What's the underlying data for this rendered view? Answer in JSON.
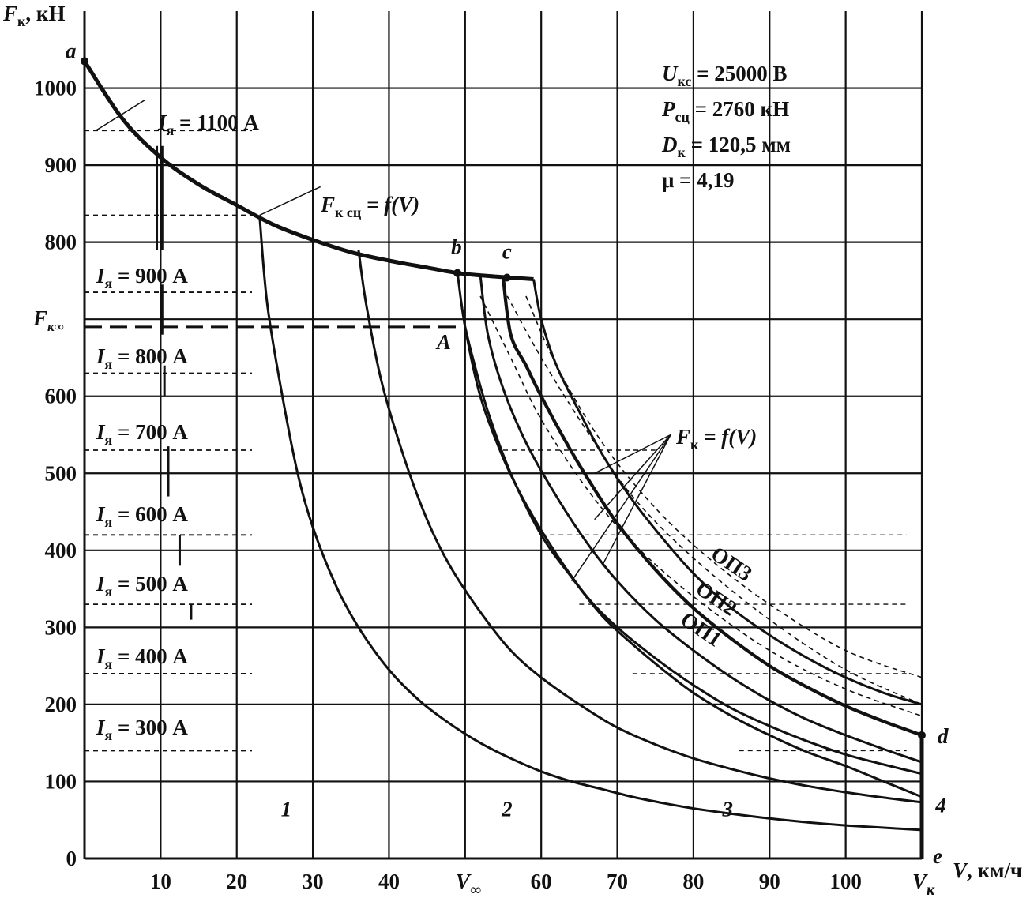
{
  "chart_data": {
    "type": "line",
    "title": "",
    "xlabel": "V, км/ч",
    "ylabel": "Fк, кН",
    "xlim": [
      0,
      110
    ],
    "ylim": [
      0,
      1100
    ],
    "x_tick_labels": [
      {
        "v": 10,
        "t": "10"
      },
      {
        "v": 20,
        "t": "20"
      },
      {
        "v": 30,
        "t": "30"
      },
      {
        "v": 40,
        "t": "40"
      },
      {
        "v": 50,
        "t": "V∞"
      },
      {
        "v": 60,
        "t": "60"
      },
      {
        "v": 70,
        "t": "70"
      },
      {
        "v": 80,
        "t": "80"
      },
      {
        "v": 90,
        "t": "90"
      },
      {
        "v": 100,
        "t": "100"
      },
      {
        "v": 110,
        "t": "Vк"
      }
    ],
    "y_tick_labels": [
      {
        "v": 0,
        "t": "0"
      },
      {
        "v": 100,
        "t": "100"
      },
      {
        "v": 200,
        "t": "200"
      },
      {
        "v": 300,
        "t": "300"
      },
      {
        "v": 400,
        "t": "400"
      },
      {
        "v": 500,
        "t": "500"
      },
      {
        "v": 600,
        "t": "600"
      },
      {
        "v": 690,
        "t": "Fк∞"
      },
      {
        "v": 800,
        "t": "800"
      },
      {
        "v": 900,
        "t": "900"
      },
      {
        "v": 1000,
        "t": "1000"
      }
    ],
    "grid": true,
    "parameters": [
      "Uкс = 25000 В",
      "Pсц = 2760 кН",
      "Dк = 120,5 мм",
      "μ = 4,19"
    ],
    "current_levels": [
      {
        "label": "Iя = 1100 А",
        "force": 945
      },
      {
        "label": "Iя = 900 А",
        "force": 735
      },
      {
        "label": "Iя = 800 А",
        "force": 690
      },
      {
        "label": "Iя = 700 А",
        "force": 530
      },
      {
        "label": "Iя = 600 А",
        "force": 420
      },
      {
        "label": "Iя = 500 А",
        "force": 330
      },
      {
        "label": "Iя = 400 А",
        "force": 240
      },
      {
        "label": "Iя = 300 А",
        "force": 140
      }
    ],
    "extra_dashed_levels": [
      835,
      630
    ],
    "adhesion_curve": {
      "name": "Fк сц = f(V)",
      "x": [
        0,
        5,
        10,
        15,
        20,
        25,
        30,
        35,
        40,
        45,
        49,
        52,
        56,
        59
      ],
      "y": [
        1035,
        960,
        910,
        875,
        848,
        822,
        803,
        787,
        776,
        767,
        760,
        757,
        754,
        752
      ]
    },
    "traction_label": "Fк = f(V)",
    "series": [
      {
        "name": "1",
        "x": [
          23,
          24,
          26,
          28,
          30,
          33,
          36,
          40,
          44,
          48,
          52,
          56,
          60,
          64,
          68,
          72,
          76,
          80,
          85,
          90,
          95,
          100,
          105,
          110
        ],
        "y": [
          835,
          720,
          600,
          500,
          430,
          355,
          300,
          245,
          205,
          175,
          150,
          130,
          113,
          100,
          90,
          80,
          72,
          65,
          58,
          52,
          47,
          43,
          40,
          37
        ]
      },
      {
        "name": "2",
        "x": [
          36,
          37,
          39,
          42,
          45,
          48,
          52,
          56,
          60,
          65,
          70,
          75,
          80,
          85,
          90,
          95,
          100,
          105,
          110
        ],
        "y": [
          790,
          720,
          620,
          520,
          440,
          380,
          320,
          270,
          235,
          200,
          170,
          148,
          130,
          116,
          104,
          94,
          86,
          79,
          73
        ]
      },
      {
        "name": "3",
        "x": [
          49,
          50,
          52,
          55,
          58,
          62,
          66,
          70,
          75,
          80,
          85,
          90,
          95,
          100,
          105,
          110
        ],
        "y": [
          760,
          690,
          600,
          520,
          460,
          395,
          340,
          300,
          260,
          225,
          195,
          172,
          152,
          135,
          122,
          110
        ]
      },
      {
        "name": "4",
        "x": [
          50,
          51,
          53,
          56,
          60,
          64,
          68,
          72,
          76,
          80,
          85,
          90,
          95,
          100,
          105,
          110
        ],
        "y": [
          690,
          650,
          580,
          500,
          420,
          365,
          315,
          278,
          245,
          215,
          185,
          160,
          138,
          120,
          100,
          80
        ]
      },
      {
        "name": "ОП1",
        "x": [
          52,
          53,
          55,
          58,
          62,
          66,
          70,
          75,
          80,
          85,
          90,
          95,
          100,
          105,
          110
        ],
        "y": [
          757,
          680,
          610,
          540,
          470,
          410,
          360,
          310,
          270,
          235,
          205,
          180,
          160,
          142,
          125
        ]
      },
      {
        "name": "ОП2",
        "x": [
          55,
          56,
          58,
          60,
          63,
          66,
          70,
          75,
          80,
          85,
          90,
          95,
          100,
          105,
          110
        ],
        "y": [
          754,
          680,
          640,
          600,
          545,
          495,
          435,
          375,
          325,
          285,
          250,
          222,
          198,
          178,
          160
        ]
      },
      {
        "name": "ОП3",
        "x": [
          59,
          60,
          62,
          65,
          68,
          72,
          76,
          80,
          85,
          90,
          95,
          100,
          105,
          110
        ],
        "y": [
          752,
          700,
          640,
          580,
          525,
          465,
          415,
          370,
          325,
          290,
          260,
          235,
          215,
          200
        ]
      }
    ],
    "points": [
      {
        "name": "a",
        "x": 0,
        "y": 1035
      },
      {
        "name": "b",
        "x": 49,
        "y": 760
      },
      {
        "name": "c",
        "x": 55.5,
        "y": 754
      },
      {
        "name": "A",
        "x": 50,
        "y": 690
      },
      {
        "name": "d",
        "x": 110,
        "y": 160
      },
      {
        "name": "e",
        "x": 110,
        "y": 0
      }
    ],
    "curve_labels": [
      {
        "name": "1",
        "x": 26.5,
        "y": 65
      },
      {
        "name": "2",
        "x": 55.5,
        "y": 65
      },
      {
        "name": "3",
        "x": 84.5,
        "y": 65
      },
      {
        "name": "4",
        "x": 112.5,
        "y": 70
      }
    ]
  }
}
